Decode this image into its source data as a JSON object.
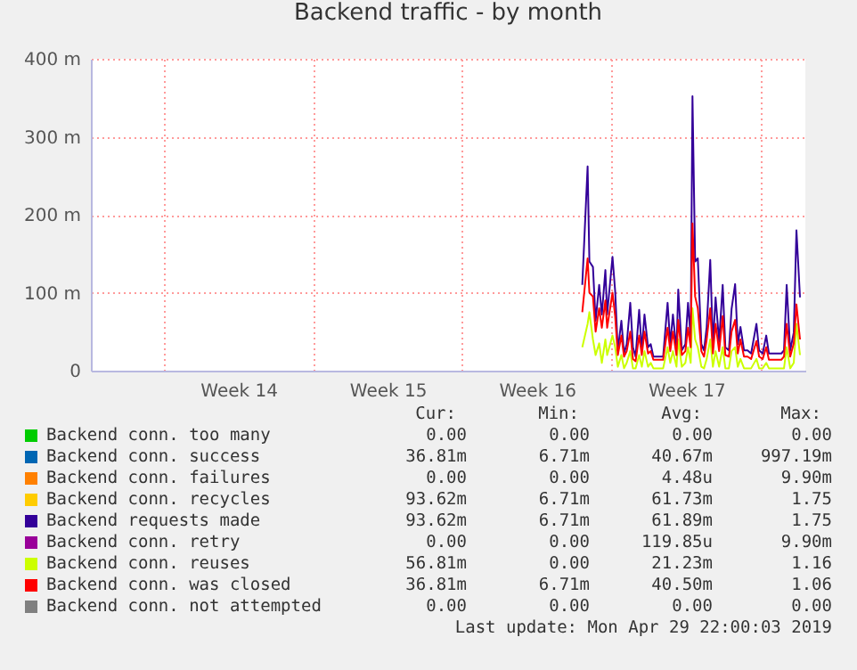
{
  "chart_data": {
    "type": "line",
    "title": "Backend traffic - by month",
    "x": [
      "2019-04-19T15:00",
      "2019-04-19T21:00",
      "2019-04-19T23:00",
      "2019-04-20T03:00",
      "2019-04-20T06:00",
      "2019-04-20T10:00",
      "2019-04-20T13:00",
      "2019-04-20T17:00",
      "2019-04-20T19:00",
      "2019-04-21T01:00",
      "2019-04-21T04:00",
      "2019-04-21T07:00",
      "2019-04-21T11:00",
      "2019-04-21T14:00",
      "2019-04-21T17:00",
      "2019-04-21T21:00",
      "2019-04-22T00:00",
      "2019-04-22T03:00",
      "2019-04-22T07:00",
      "2019-04-22T10:00",
      "2019-04-22T13:00",
      "2019-04-22T17:00",
      "2019-04-22T20:00",
      "2019-04-22T23:00",
      "2019-04-23T06:00",
      "2019-04-23T10:00",
      "2019-04-23T15:00",
      "2019-04-23T18:00",
      "2019-04-23T21:00",
      "2019-04-24T01:00",
      "2019-04-24T03:00",
      "2019-04-24T07:00",
      "2019-04-24T11:00",
      "2019-04-24T14:00",
      "2019-04-24T17:00",
      "2019-04-24T19:00",
      "2019-04-24T22:00",
      "2019-04-25T01:00",
      "2019-04-25T05:00",
      "2019-04-25T08:00",
      "2019-04-25T11:00",
      "2019-04-25T15:00",
      "2019-04-25T18:00",
      "2019-04-25T21:00",
      "2019-04-26T01:00",
      "2019-04-26T05:00",
      "2019-04-26T08:00",
      "2019-04-26T12:00",
      "2019-04-26T15:00",
      "2019-04-26T19:00",
      "2019-04-26T22:00",
      "2019-04-27T01:00",
      "2019-04-27T05:00",
      "2019-04-27T09:00",
      "2019-04-27T13:00",
      "2019-04-27T19:00",
      "2019-04-27T22:00",
      "2019-04-28T02:00",
      "2019-04-28T06:00",
      "2019-04-28T09:00",
      "2019-04-28T16:00",
      "2019-04-28T23:00",
      "2019-04-29T02:00",
      "2019-04-29T05:00",
      "2019-04-29T09:00",
      "2019-04-29T13:00",
      "2019-04-29T16:00",
      "2019-04-29T20:00"
    ],
    "series": [
      {
        "name": "Backend conn. too many",
        "color": "#00cc00",
        "values": [
          null,
          null,
          null,
          null,
          null,
          null,
          null,
          null,
          null,
          null,
          null,
          null,
          null,
          null,
          null,
          null,
          null,
          null,
          null,
          null,
          null,
          null,
          null,
          null,
          null,
          null,
          null,
          null,
          null,
          null,
          null,
          null,
          null,
          null,
          null,
          null,
          null,
          null,
          null,
          null,
          null,
          null,
          null,
          null,
          null,
          null,
          null,
          null,
          null,
          null,
          null,
          null,
          null,
          null,
          null,
          null,
          null,
          null,
          null,
          null,
          null,
          null,
          null,
          null,
          null,
          null,
          null,
          null
        ]
      },
      {
        "name": "Backend conn. success",
        "color": "#0066b3",
        "values": [
          null,
          null,
          null,
          null,
          null,
          null,
          null,
          null,
          null,
          null,
          null,
          null,
          null,
          null,
          null,
          null,
          null,
          null,
          null,
          null,
          null,
          null,
          null,
          null,
          null,
          null,
          null,
          null,
          null,
          null,
          null,
          null,
          null,
          null,
          null,
          null,
          null,
          null,
          null,
          null,
          null,
          null,
          null,
          null,
          null,
          null,
          null,
          null,
          null,
          null,
          null,
          null,
          null,
          null,
          null,
          null,
          null,
          null,
          null,
          null,
          null,
          null,
          null,
          null,
          null,
          null,
          null,
          null
        ]
      },
      {
        "name": "Backend conn. failures",
        "color": "#ff8000",
        "values": [
          null,
          null,
          null,
          null,
          null,
          null,
          null,
          null,
          null,
          null,
          null,
          null,
          null,
          null,
          null,
          null,
          null,
          null,
          null,
          null,
          null,
          null,
          null,
          null,
          null,
          null,
          null,
          null,
          null,
          null,
          null,
          null,
          null,
          null,
          null,
          null,
          null,
          null,
          null,
          null,
          null,
          null,
          null,
          null,
          null,
          null,
          null,
          null,
          null,
          null,
          null,
          null,
          null,
          null,
          null,
          null,
          null,
          null,
          null,
          null,
          null,
          null,
          null,
          null,
          null,
          null,
          null,
          null
        ]
      },
      {
        "name": "Backend conn. recycles",
        "color": "#ffcc00",
        "values": [
          null,
          null,
          null,
          null,
          null,
          null,
          null,
          null,
          null,
          null,
          null,
          null,
          null,
          null,
          null,
          null,
          null,
          null,
          null,
          null,
          null,
          null,
          null,
          null,
          null,
          null,
          null,
          null,
          null,
          null,
          null,
          null,
          null,
          null,
          null,
          null,
          null,
          null,
          null,
          null,
          null,
          null,
          null,
          null,
          null,
          null,
          null,
          null,
          null,
          null,
          null,
          null,
          null,
          null,
          null,
          null,
          null,
          null,
          null,
          null,
          null,
          null,
          null,
          null,
          null,
          null,
          null,
          null
        ]
      },
      {
        "name": "Backend requests made",
        "color": "#330099",
        "values": [
          110,
          262,
          140,
          133,
          64,
          110,
          72,
          129,
          72,
          146,
          102,
          26,
          64,
          22,
          34,
          87,
          30,
          18,
          78,
          26,
          72,
          30,
          34,
          18,
          18,
          18,
          87,
          34,
          72,
          26,
          104,
          26,
          34,
          87,
          41,
          352,
          140,
          144,
          34,
          26,
          56,
          142,
          34,
          94,
          37,
          110,
          30,
          26,
          79,
          111,
          34,
          56,
          26,
          26,
          22,
          60,
          26,
          22,
          45,
          22,
          22,
          22,
          26,
          110,
          26,
          49,
          180,
          94
        ]
      },
      {
        "name": "Backend conn. retry",
        "color": "#990099",
        "values": [
          null,
          null,
          null,
          null,
          null,
          null,
          null,
          null,
          null,
          null,
          null,
          null,
          null,
          null,
          null,
          null,
          null,
          null,
          null,
          null,
          null,
          null,
          null,
          null,
          null,
          null,
          null,
          null,
          null,
          null,
          null,
          null,
          null,
          null,
          null,
          null,
          null,
          null,
          null,
          null,
          null,
          null,
          null,
          null,
          null,
          null,
          null,
          null,
          null,
          null,
          null,
          null,
          null,
          null,
          null,
          null,
          null,
          null,
          null,
          null,
          null,
          null,
          null,
          null,
          null,
          null,
          null,
          null
        ]
      },
      {
        "name": "Backend conn. reuses",
        "color": "#ccff00",
        "values": [
          30,
          60,
          75,
          40,
          20,
          35,
          10,
          40,
          20,
          45,
          30,
          5,
          20,
          3,
          10,
          25,
          3,
          3,
          20,
          5,
          25,
          5,
          10,
          3,
          3,
          3,
          30,
          10,
          25,
          5,
          40,
          5,
          10,
          30,
          10,
          80,
          40,
          30,
          5,
          3,
          15,
          40,
          5,
          25,
          5,
          30,
          3,
          3,
          25,
          30,
          5,
          15,
          3,
          3,
          3,
          15,
          3,
          3,
          10,
          3,
          3,
          3,
          3,
          30,
          3,
          10,
          60,
          20
        ]
      },
      {
        "name": "Backend conn. was closed",
        "color": "#ff0000",
        "values": [
          75,
          144,
          100,
          95,
          50,
          80,
          55,
          90,
          55,
          100,
          70,
          20,
          45,
          18,
          25,
          50,
          15,
          12,
          45,
          20,
          50,
          22,
          25,
          14,
          14,
          14,
          55,
          25,
          50,
          20,
          65,
          20,
          25,
          55,
          30,
          189,
          95,
          80,
          25,
          18,
          40,
          80,
          22,
          60,
          25,
          70,
          20,
          18,
          50,
          65,
          22,
          40,
          18,
          18,
          15,
          38,
          18,
          15,
          30,
          14,
          14,
          14,
          18,
          60,
          18,
          35,
          85,
          40
        ]
      },
      {
        "name": "Backend conn. not attempted",
        "color": "#808080",
        "values": [
          null,
          null,
          null,
          null,
          null,
          null,
          null,
          null,
          null,
          null,
          null,
          null,
          null,
          null,
          null,
          null,
          null,
          null,
          null,
          null,
          null,
          null,
          null,
          null,
          null,
          null,
          null,
          null,
          null,
          null,
          null,
          null,
          null,
          null,
          null,
          null,
          null,
          null,
          null,
          null,
          null,
          null,
          null,
          null,
          null,
          null,
          null,
          null,
          null,
          null,
          null,
          null,
          null,
          null,
          null,
          null,
          null,
          null,
          null,
          null,
          null,
          null,
          null,
          null,
          null,
          null,
          null,
          null
        ]
      }
    ],
    "xlim": [
      "2019-03-27T14:00",
      "2019-04-30T02:00"
    ],
    "xticks": [
      {
        "value": "2019-03-31T00:00",
        "label": null
      },
      {
        "value": "2019-04-03T12:00",
        "label": "Week 14"
      },
      {
        "value": "2019-04-07T00:00",
        "label": null
      },
      {
        "value": "2019-04-10T12:00",
        "label": "Week 15"
      },
      {
        "value": "2019-04-14T00:00",
        "label": null
      },
      {
        "value": "2019-04-17T12:00",
        "label": "Week 16"
      },
      {
        "value": "2019-04-21T00:00",
        "label": null
      },
      {
        "value": "2019-04-24T12:00",
        "label": "Week 17"
      },
      {
        "value": "2019-04-28T00:00",
        "label": null
      }
    ],
    "ylim": [
      0,
      400
    ],
    "yticks": [
      {
        "value": 0,
        "label": "0"
      },
      {
        "value": 100,
        "label": "100 m"
      },
      {
        "value": 200,
        "label": "200 m"
      },
      {
        "value": 300,
        "label": "300 m"
      },
      {
        "value": 400,
        "label": "400 m"
      }
    ],
    "grid": true,
    "legend": "bottom",
    "annotations": [
      "Cur:",
      "Min:",
      "Avg:",
      "Max:",
      "0.00",
      "0.00",
      "0.00",
      "0.00",
      "36.81m",
      "6.71m",
      "40.67m",
      "997.19m",
      "0.00",
      "0.00",
      "4.48u",
      "9.90m",
      "93.62m",
      "6.71m",
      "61.73m",
      "1.75",
      "93.62m",
      "6.71m",
      "61.89m",
      "1.75",
      "0.00",
      "0.00",
      "119.85u",
      "9.90m",
      "56.81m",
      "0.00",
      "21.23m",
      "1.16",
      "36.81m",
      "6.71m",
      "40.50m",
      "1.06",
      "0.00",
      "0.00",
      "0.00",
      "0.00",
      "Last update: Mon Apr 29 22:00:03 2019"
    ]
  }
}
